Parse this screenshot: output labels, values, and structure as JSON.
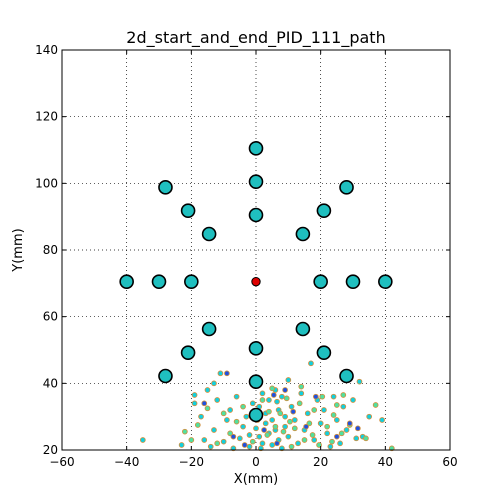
{
  "chart_data": {
    "type": "scatter",
    "title": "2d_start_and_end_PID_111_path",
    "xlabel": "X(mm)",
    "ylabel": "Y(mm)",
    "xlim": [
      -60,
      60
    ],
    "ylim": [
      20,
      140
    ],
    "xticks": [
      -60,
      -40,
      -20,
      0,
      20,
      40,
      60
    ],
    "yticks": [
      20,
      40,
      60,
      80,
      100,
      120,
      140
    ],
    "grid": true,
    "colors": {
      "target": "#1fbfbf",
      "center": "#dd0000",
      "path_cyan": "#10d0e0",
      "path_green": "#50e0a0",
      "path_blue": "#2050e0",
      "path_edge": "#d09040"
    },
    "series": [
      {
        "marker": "large-circle",
        "color": "#1fbfbf",
        "points": [
          [
            0,
            110.5
          ],
          [
            0,
            100.5
          ],
          [
            0,
            90.5
          ],
          [
            -28,
            98.8
          ],
          [
            28,
            98.8
          ],
          [
            -21,
            91.8
          ],
          [
            21,
            91.8
          ],
          [
            -14.5,
            84.8
          ],
          [
            14.5,
            84.8
          ],
          [
            -40,
            70.5
          ],
          [
            -30,
            70.5
          ],
          [
            -20,
            70.5
          ],
          [
            20,
            70.5
          ],
          [
            30,
            70.5
          ],
          [
            40,
            70.5
          ],
          [
            -14.5,
            56.3
          ],
          [
            14.5,
            56.3
          ],
          [
            -21,
            49.2
          ],
          [
            21,
            49.2
          ],
          [
            0,
            50.5
          ],
          [
            0,
            40.5
          ],
          [
            0,
            30.5
          ],
          [
            -28,
            42.2
          ],
          [
            28,
            42.2
          ]
        ]
      },
      {
        "marker": "center-circle",
        "color": "#dd0000",
        "points": [
          [
            0,
            70.5
          ]
        ]
      },
      {
        "marker": "small-circle",
        "color": "#10d0e0",
        "points": [
          [
            -35,
            23
          ],
          [
            -23,
            21.5
          ],
          [
            -19,
            36.5
          ],
          [
            -19,
            34
          ],
          [
            -17,
            30
          ],
          [
            -16,
            23
          ],
          [
            -15,
            38
          ],
          [
            -14,
            21
          ],
          [
            -13,
            40
          ],
          [
            -13,
            26
          ],
          [
            -12,
            35
          ],
          [
            -11,
            43
          ],
          [
            -10,
            22.5
          ],
          [
            -9,
            29
          ],
          [
            -8,
            32
          ],
          [
            -7,
            20.5
          ],
          [
            -6,
            36
          ],
          [
            -5,
            23.5
          ],
          [
            -4,
            27
          ],
          [
            -3,
            30
          ],
          [
            -2,
            21
          ],
          [
            -1,
            34
          ],
          [
            1,
            24
          ],
          [
            1,
            33
          ],
          [
            2,
            22
          ],
          [
            2,
            37
          ],
          [
            3,
            28
          ],
          [
            3,
            31
          ],
          [
            4,
            25
          ],
          [
            4,
            35
          ],
          [
            5,
            21.5
          ],
          [
            5,
            29
          ],
          [
            6,
            38
          ],
          [
            6,
            26
          ],
          [
            7,
            23
          ],
          [
            7,
            32
          ],
          [
            8,
            36
          ],
          [
            8,
            20.5
          ],
          [
            9,
            30
          ],
          [
            9,
            27
          ],
          [
            10,
            41
          ],
          [
            10,
            24
          ],
          [
            11,
            33
          ],
          [
            12,
            29
          ],
          [
            13,
            22
          ],
          [
            14,
            37
          ],
          [
            15,
            26
          ],
          [
            16,
            31
          ],
          [
            17,
            46
          ],
          [
            18,
            23
          ],
          [
            19,
            35
          ],
          [
            20,
            28
          ],
          [
            21,
            32
          ],
          [
            22,
            25
          ],
          [
            23,
            21
          ],
          [
            24,
            36
          ],
          [
            25,
            29
          ],
          [
            26,
            22
          ],
          [
            27,
            33
          ],
          [
            28,
            26
          ],
          [
            30,
            35
          ],
          [
            31,
            23.5
          ],
          [
            32,
            40.5
          ],
          [
            33,
            24
          ],
          [
            35,
            30
          ],
          [
            39,
            29
          ],
          [
            -2,
            24.5
          ],
          [
            0,
            26.5
          ],
          [
            1.5,
            20.5
          ],
          [
            6.5,
            34.5
          ]
        ]
      },
      {
        "marker": "small-circle",
        "color": "#50e0a0",
        "points": [
          [
            -20,
            23
          ],
          [
            -18,
            27.5
          ],
          [
            -15,
            32.5
          ],
          [
            -12,
            22
          ],
          [
            -8,
            25
          ],
          [
            -6,
            28.5
          ],
          [
            -4,
            33
          ],
          [
            -1,
            22.5
          ],
          [
            0.5,
            29
          ],
          [
            2,
            35
          ],
          [
            3.5,
            24.5
          ],
          [
            5,
            38.5
          ],
          [
            6,
            27
          ],
          [
            7.5,
            31
          ],
          [
            8.5,
            25.5
          ],
          [
            9.5,
            35.5
          ],
          [
            11,
            21
          ],
          [
            12,
            26.5
          ],
          [
            13.5,
            34
          ],
          [
            15,
            23
          ],
          [
            16.5,
            28
          ],
          [
            18,
            32
          ],
          [
            19.5,
            21.5
          ],
          [
            20.5,
            36
          ],
          [
            22,
            27
          ],
          [
            23.5,
            22.5
          ],
          [
            25,
            33.5
          ],
          [
            26.5,
            25
          ],
          [
            29,
            27.5
          ],
          [
            34,
            23.5
          ],
          [
            37,
            33.5
          ],
          [
            42,
            20.5
          ],
          [
            -22,
            25.5
          ],
          [
            -10,
            31
          ],
          [
            4,
            31.5
          ],
          [
            10.5,
            28.5
          ],
          [
            14,
            39
          ],
          [
            17.5,
            24.5
          ],
          [
            24,
            30.5
          ],
          [
            27,
            36.5
          ]
        ]
      },
      {
        "marker": "small-circle",
        "color": "#2050e0",
        "points": [
          [
            -16,
            34
          ],
          [
            -9,
            43
          ],
          [
            -7,
            24
          ],
          [
            2.5,
            26
          ],
          [
            6.5,
            22
          ],
          [
            9,
            38
          ],
          [
            11.5,
            31.5
          ],
          [
            15.5,
            27
          ],
          [
            18.5,
            36
          ],
          [
            25,
            24
          ],
          [
            29,
            28
          ],
          [
            31.5,
            26.5
          ],
          [
            -3.5,
            21.5
          ],
          [
            5.5,
            36.5
          ]
        ]
      }
    ]
  }
}
